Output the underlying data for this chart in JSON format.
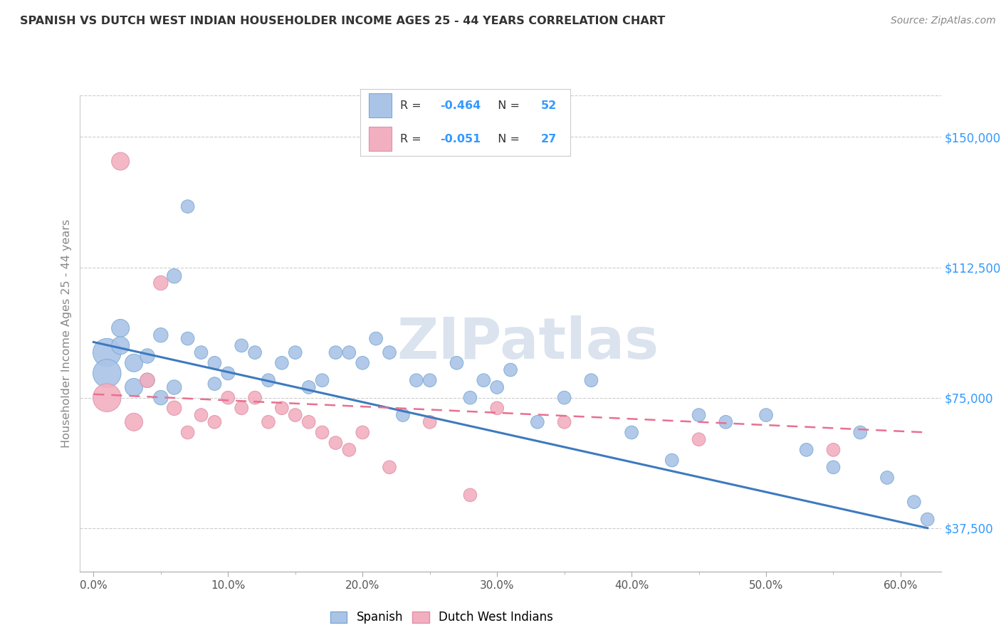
{
  "title": "SPANISH VS DUTCH WEST INDIAN HOUSEHOLDER INCOME AGES 25 - 44 YEARS CORRELATION CHART",
  "source": "Source: ZipAtlas.com",
  "ylabel": "Householder Income Ages 25 - 44 years",
  "xlabel_ticks": [
    "0.0%",
    "10.0%",
    "20.0%",
    "30.0%",
    "40.0%",
    "50.0%",
    "60.0%"
  ],
  "xlabel_vals": [
    0.0,
    10.0,
    20.0,
    30.0,
    40.0,
    50.0,
    60.0
  ],
  "ytick_labels": [
    "$37,500",
    "$75,000",
    "$112,500",
    "$150,000"
  ],
  "ytick_vals": [
    37500,
    75000,
    112500,
    150000
  ],
  "xlim": [
    -1,
    63
  ],
  "ylim": [
    25000,
    162000
  ],
  "r_spanish": -0.464,
  "n_spanish": 52,
  "r_dutch": -0.051,
  "n_dutch": 27,
  "spanish_color": "#aac4e8",
  "spanish_edge": "#7aaad0",
  "dutch_color": "#f2afc0",
  "dutch_edge": "#e090a8",
  "trend_spanish_color": "#3d7abf",
  "trend_dutch_color": "#e87090",
  "watermark": "ZIPatlas",
  "spanish_x": [
    1,
    1,
    2,
    2,
    3,
    3,
    4,
    4,
    5,
    5,
    6,
    6,
    7,
    7,
    8,
    9,
    9,
    10,
    11,
    12,
    13,
    14,
    15,
    16,
    17,
    18,
    19,
    20,
    21,
    22,
    23,
    24,
    25,
    27,
    28,
    29,
    30,
    31,
    33,
    35,
    37,
    40,
    43,
    45,
    47,
    50,
    53,
    55,
    57,
    59,
    61,
    62
  ],
  "spanish_y": [
    88000,
    82000,
    95000,
    90000,
    85000,
    78000,
    80000,
    87000,
    93000,
    75000,
    110000,
    78000,
    130000,
    92000,
    88000,
    85000,
    79000,
    82000,
    90000,
    88000,
    80000,
    85000,
    88000,
    78000,
    80000,
    88000,
    88000,
    85000,
    92000,
    88000,
    70000,
    80000,
    80000,
    85000,
    75000,
    80000,
    78000,
    83000,
    68000,
    75000,
    80000,
    65000,
    57000,
    70000,
    68000,
    70000,
    60000,
    55000,
    65000,
    52000,
    45000,
    40000
  ],
  "dutch_x": [
    1,
    2,
    3,
    4,
    5,
    6,
    7,
    8,
    9,
    10,
    11,
    12,
    13,
    14,
    15,
    16,
    17,
    18,
    19,
    20,
    22,
    25,
    28,
    30,
    35,
    45,
    55
  ],
  "dutch_y": [
    75000,
    143000,
    68000,
    80000,
    108000,
    72000,
    65000,
    70000,
    68000,
    75000,
    72000,
    75000,
    68000,
    72000,
    70000,
    68000,
    65000,
    62000,
    60000,
    65000,
    55000,
    68000,
    47000,
    72000,
    68000,
    63000,
    60000
  ],
  "background_color": "#ffffff",
  "grid_color": "#cccccc",
  "legend_spanish_label": "Spanish",
  "legend_dutch_label": "Dutch West Indians",
  "title_color": "#333333",
  "source_color": "#888888",
  "axis_color": "#888888",
  "watermark_color": "#ccd8e8",
  "point_size": 180
}
